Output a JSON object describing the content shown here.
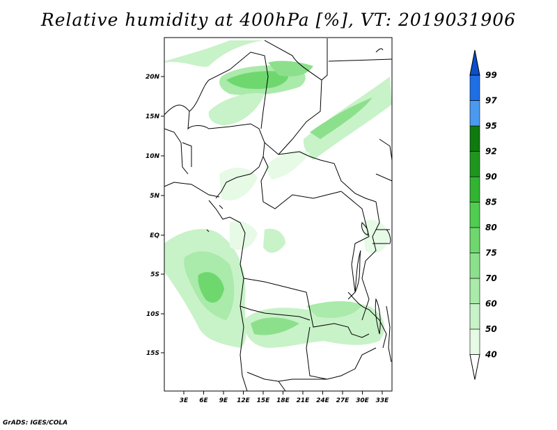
{
  "title": "Relative humidity at 400hPa [%], VT: 2019031906",
  "credit": "GrADS: IGES/COLA",
  "lat_labels": [
    "20N",
    "15N",
    "10N",
    "5N",
    "EQ",
    "5S",
    "10S",
    "15S"
  ],
  "lon_labels": [
    "3E",
    "6E",
    "9E",
    "12E",
    "15E",
    "18E",
    "21E",
    "24E",
    "27E",
    "30E",
    "33E"
  ],
  "colorbar": {
    "levels": [
      "40",
      "50",
      "60",
      "70",
      "75",
      "80",
      "85",
      "90",
      "92",
      "95",
      "97",
      "99"
    ],
    "colors": [
      "#ffffff",
      "#e6fae6",
      "#c8f2c8",
      "#aaeaaa",
      "#8ce08c",
      "#6ed86e",
      "#50cc50",
      "#32b432",
      "#1e961e",
      "#0f7a0f",
      "#4a9af0",
      "#1e6ee6",
      "#0a4ec8"
    ]
  }
}
